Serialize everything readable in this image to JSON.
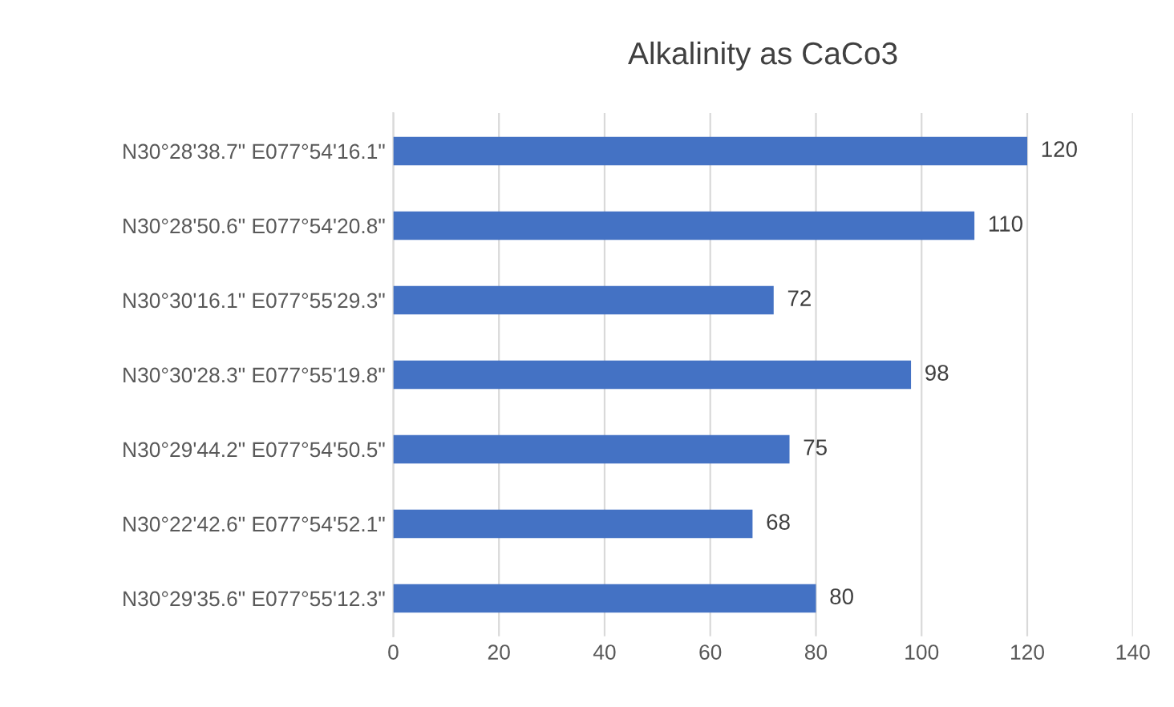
{
  "chart_data": {
    "type": "bar",
    "orientation": "horizontal",
    "title": "Alkalinity as CaCo3",
    "categories": [
      "N30°28'38.7\" E077°54'16.1\"",
      "N30°28'50.6\" E077°54'20.8\"",
      "N30°30'16.1\" E077°55'29.3\"",
      "N30°30'28.3\" E077°55'19.8\"",
      "N30°29'44.2\" E077°54'50.5\"",
      "N30°22'42.6\" E077°54'52.1\"",
      "N30°29'35.6\" E077°55'12.3\""
    ],
    "values": [
      120,
      110,
      72,
      98,
      75,
      68,
      80
    ],
    "color": "#4472c4",
    "xlim": [
      0,
      140
    ],
    "xticks": [
      0,
      20,
      40,
      60,
      80,
      100,
      120,
      140
    ],
    "grid": "x",
    "data_labels": true
  }
}
